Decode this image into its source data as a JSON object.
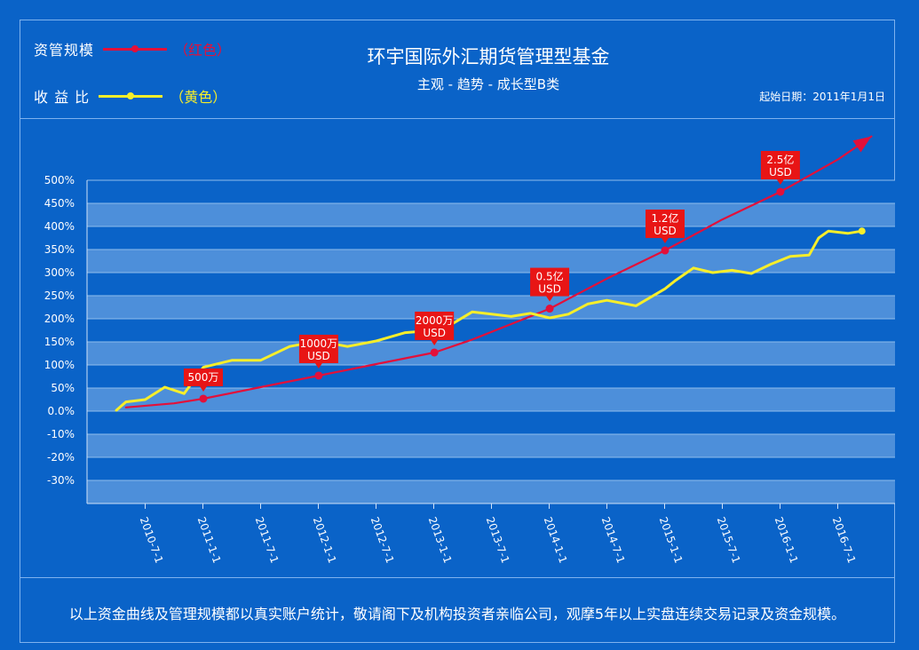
{
  "legend": [
    {
      "label": "资管规模",
      "note": "（红色）",
      "color": "#e3103a"
    },
    {
      "label": "收 益 比",
      "note": "（黄色）",
      "color": "#f6ee2a"
    }
  ],
  "header": {
    "title": "环宇国际外汇期货管理型基金",
    "subtitle": "主观 - 趋势 - 成长型B类",
    "start_date": "起始日期：2011年1月1日"
  },
  "footer": {
    "note": "以上资金曲线及管理规模都以真实账户统计，敬请阁下及机构投资者亲临公司，观摩5年以上实盘连续交易记录及资金规模。"
  },
  "colors": {
    "background": "#0a63c8",
    "band_light": "#4d8fda",
    "band_dark": "#0a63c8",
    "aum_line": "#e3103a",
    "return_line": "#f6ee2a",
    "callout_bg": "#e81515"
  },
  "chart_data": {
    "type": "line",
    "title": "环宇国际外汇期货管理型基金",
    "subtitle": "主观 - 趋势 - 成长型B类",
    "xlabel": "",
    "ylabel": "",
    "y_ticks": [
      "500%",
      "450%",
      "400%",
      "350%",
      "300%",
      "250%",
      "200%",
      "150%",
      "100%",
      "50%",
      "0.0%",
      "-10%",
      "-20%",
      "-30%"
    ],
    "x_ticks": [
      "2010-7-1",
      "2011-1-1",
      "2011-7-1",
      "2012-1-1",
      "2012-7-1",
      "2013-1-1",
      "2013-7-1",
      "2014-1-1",
      "2014-7-1",
      "2015-1-1",
      "2015-7-1",
      "2016-1-1",
      "2016-7-1"
    ],
    "grid": true,
    "legend_position": "top-left",
    "series": [
      {
        "name": "资管规模",
        "color": "#e3103a",
        "x": [
          "2010-5-1",
          "2010-10-1",
          "2011-1-1",
          "2011-7-1",
          "2012-1-1",
          "2012-7-1",
          "2013-1-1",
          "2013-5-1",
          "2014-1-1",
          "2014-7-1",
          "2015-1-1",
          "2015-7-1",
          "2016-1-1",
          "2016-7-1",
          "2016-10-15"
        ],
        "y": [
          8,
          17,
          27,
          52,
          77,
          102,
          127,
          155,
          222,
          287,
          348,
          415,
          475,
          545,
          595
        ],
        "ends_with_arrow": true
      },
      {
        "name": "收益比",
        "color": "#f6ee2a",
        "x": [
          "2010-4-1",
          "2010-5-1",
          "2010-7-1",
          "2010-9-1",
          "2010-11-1",
          "2011-1-1",
          "2011-4-1",
          "2011-7-1",
          "2011-10-1",
          "2012-1-1",
          "2012-4-1",
          "2012-7-1",
          "2012-10-1",
          "2013-1-1",
          "2013-3-1",
          "2013-5-1",
          "2013-7-1",
          "2013-9-1",
          "2013-11-1",
          "2014-1-1",
          "2014-3-1",
          "2014-5-1",
          "2014-7-1",
          "2014-10-1",
          "2015-1-1",
          "2015-2-1",
          "2015-4-1",
          "2015-6-1",
          "2015-8-1",
          "2015-10-1",
          "2015-12-1",
          "2016-2-1",
          "2016-4-1",
          "2016-5-1",
          "2016-6-1",
          "2016-8-1",
          "2016-9-15"
        ],
        "y": [
          2,
          20,
          25,
          52,
          38,
          95,
          110,
          110,
          140,
          152,
          140,
          152,
          170,
          175,
          190,
          215,
          210,
          205,
          212,
          202,
          210,
          232,
          240,
          228,
          265,
          282,
          310,
          300,
          305,
          298,
          318,
          335,
          338,
          375,
          390,
          385,
          390
        ]
      }
    ],
    "annotations": [
      {
        "x": "2011-1-1",
        "y": 27,
        "text": [
          "500万"
        ]
      },
      {
        "x": "2012-1-1",
        "y": 77,
        "text": [
          "1000万",
          "USD"
        ]
      },
      {
        "x": "2013-1-1",
        "y": 127,
        "text": [
          "2000万",
          "USD"
        ]
      },
      {
        "x": "2014-1-1",
        "y": 222,
        "text": [
          "0.5亿",
          "USD"
        ]
      },
      {
        "x": "2015-1-1",
        "y": 348,
        "text": [
          "1.2亿",
          "USD"
        ]
      },
      {
        "x": "2016-1-1",
        "y": 475,
        "text": [
          "2.5亿",
          "USD"
        ]
      }
    ]
  }
}
